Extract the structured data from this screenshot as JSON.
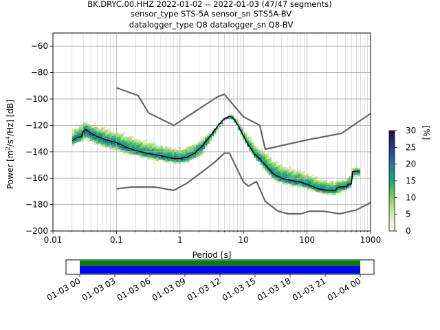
{
  "chart_data": {
    "type": "heatmap",
    "title_lines": [
      "BK.DRYC.00.HHZ   2022-01-02 -- 2022-01-03  (47/47 segments)",
      "sensor_type STS-5A sensor_sn STS5A-BV",
      "datalogger_type Q8 datalogger_sn Q8-BV"
    ],
    "xlabel": "Period [s]",
    "ylabel_parts": [
      "Power [m",
      "2",
      "/s",
      "4",
      "/Hz] [dB]"
    ],
    "x_scale": "log",
    "xlim": [
      0.01,
      1000
    ],
    "ylim": [
      -200,
      -50
    ],
    "x_ticks": [
      {
        "value": 0.01,
        "label": "0.01"
      },
      {
        "value": 0.1,
        "label": "0.1"
      },
      {
        "value": 1,
        "label": "1"
      },
      {
        "value": 10,
        "label": "10"
      },
      {
        "value": 100,
        "label": "100"
      },
      {
        "value": 1000,
        "label": "1000"
      }
    ],
    "y_ticks": [
      {
        "value": -60,
        "label": "−60"
      },
      {
        "value": -80,
        "label": "−80"
      },
      {
        "value": -100,
        "label": "−100"
      },
      {
        "value": -120,
        "label": "−120"
      },
      {
        "value": -140,
        "label": "−140"
      },
      {
        "value": -160,
        "label": "−160"
      },
      {
        "value": -180,
        "label": "−180"
      },
      {
        "value": -200,
        "label": "−200"
      }
    ],
    "grid": true,
    "noise_model_high": [
      [
        0.1,
        -91.5
      ],
      [
        0.22,
        -97.4
      ],
      [
        0.32,
        -110.5
      ],
      [
        0.8,
        -120
      ],
      [
        4,
        -98
      ],
      [
        5,
        -96.5
      ],
      [
        6,
        -101
      ],
      [
        10,
        -113.5
      ],
      [
        18,
        -120
      ],
      [
        22,
        -138
      ],
      [
        100,
        -131
      ],
      [
        350,
        -126
      ],
      [
        1000,
        -111
      ]
    ],
    "noise_model_low": [
      [
        0.1,
        -168
      ],
      [
        0.17,
        -166.7
      ],
      [
        0.4,
        -166.7
      ],
      [
        0.8,
        -169.2
      ],
      [
        1.3,
        -163.7
      ],
      [
        3.5,
        -148
      ],
      [
        5,
        -141
      ],
      [
        6,
        -141
      ],
      [
        10,
        -163
      ],
      [
        12,
        -166
      ],
      [
        16,
        -162.5
      ],
      [
        22,
        -177.5
      ],
      [
        35,
        -185
      ],
      [
        50,
        -187
      ],
      [
        80,
        -187
      ],
      [
        110,
        -185
      ],
      [
        180,
        -185
      ],
      [
        330,
        -187
      ],
      [
        600,
        -184
      ],
      [
        1000,
        -178.5
      ]
    ],
    "median_curve": [
      [
        0.02,
        -131.5
      ],
      [
        0.024,
        -129
      ],
      [
        0.028,
        -128.5
      ],
      [
        0.03,
        -124.5
      ],
      [
        0.033,
        -123
      ],
      [
        0.04,
        -126
      ],
      [
        0.05,
        -128.5
      ],
      [
        0.07,
        -131
      ],
      [
        0.1,
        -133
      ],
      [
        0.15,
        -137
      ],
      [
        0.2,
        -139
      ],
      [
        0.3,
        -141
      ],
      [
        0.5,
        -143
      ],
      [
        0.8,
        -145
      ],
      [
        1,
        -145
      ],
      [
        1.3,
        -144
      ],
      [
        1.7,
        -141
      ],
      [
        2.2,
        -136
      ],
      [
        3,
        -128
      ],
      [
        4,
        -120
      ],
      [
        5,
        -115
      ],
      [
        6,
        -113
      ],
      [
        6.8,
        -114
      ],
      [
        8,
        -119
      ],
      [
        10,
        -128
      ],
      [
        12,
        -135
      ],
      [
        15,
        -142
      ],
      [
        18,
        -145
      ],
      [
        22,
        -150
      ],
      [
        30,
        -157
      ],
      [
        40,
        -160
      ],
      [
        60,
        -162
      ],
      [
        80,
        -163
      ],
      [
        100,
        -164.5
      ],
      [
        150,
        -168
      ],
      [
        200,
        -169
      ],
      [
        280,
        -169.5
      ],
      [
        300,
        -167
      ],
      [
        430,
        -166
      ],
      [
        440,
        -164.5
      ],
      [
        500,
        -164.5
      ],
      [
        520,
        -155
      ],
      [
        680,
        -154.5
      ]
    ],
    "spread_upper": [
      [
        0.02,
        -121
      ],
      [
        0.03,
        -112
      ],
      [
        0.05,
        -116
      ],
      [
        0.1,
        -120
      ],
      [
        0.2,
        -124
      ],
      [
        0.5,
        -130
      ],
      [
        1,
        -133
      ],
      [
        2,
        -128
      ],
      [
        3,
        -124
      ],
      [
        5,
        -113
      ],
      [
        6.5,
        -111
      ],
      [
        8,
        -114
      ],
      [
        10,
        -121
      ],
      [
        15,
        -129
      ],
      [
        20,
        -134
      ],
      [
        30,
        -140
      ],
      [
        50,
        -146
      ],
      [
        100,
        -151
      ],
      [
        200,
        -157
      ],
      [
        300,
        -158
      ],
      [
        430,
        -157
      ],
      [
        520,
        -150
      ],
      [
        680,
        -150
      ]
    ],
    "spread_lower": [
      [
        0.02,
        -137
      ],
      [
        0.03,
        -134
      ],
      [
        0.05,
        -138
      ],
      [
        0.1,
        -142
      ],
      [
        0.2,
        -145
      ],
      [
        0.5,
        -149
      ],
      [
        1,
        -151
      ],
      [
        1.5,
        -149
      ],
      [
        2.2,
        -145
      ],
      [
        3,
        -134
      ],
      [
        4,
        -124
      ],
      [
        5,
        -117
      ],
      [
        6.5,
        -116
      ],
      [
        8,
        -122
      ],
      [
        10,
        -132
      ],
      [
        15,
        -146
      ],
      [
        20,
        -154
      ],
      [
        30,
        -164
      ],
      [
        50,
        -167
      ],
      [
        100,
        -170
      ],
      [
        150,
        -172
      ],
      [
        200,
        -174
      ],
      [
        300,
        -174
      ],
      [
        430,
        -171
      ],
      [
        500,
        -168
      ],
      [
        520,
        -160
      ],
      [
        680,
        -160
      ]
    ],
    "colorbar": {
      "label": "[%]",
      "min": 0,
      "max": 30,
      "ticks": [
        0,
        5,
        10,
        15,
        20,
        25,
        30
      ],
      "colors": [
        "#ffffff",
        "#d4ebaa",
        "#7ed05e",
        "#1aa77a",
        "#1c7b9a",
        "#2e3c86",
        "#2b0a3d"
      ]
    },
    "coverage": {
      "x_tick_labels": [
        "01-03 00",
        "01-03 03",
        "01-03 06",
        "01-03 09",
        "01-03 12",
        "01-03 15",
        "01-03 18",
        "01-03 21",
        "01-04 00"
      ],
      "bar_colors": {
        "top": "#008000",
        "bottom": "#0000ff"
      }
    },
    "colors": {
      "noise_model": "#666666",
      "median": "#000000",
      "grid": "#b0b0b0"
    }
  }
}
